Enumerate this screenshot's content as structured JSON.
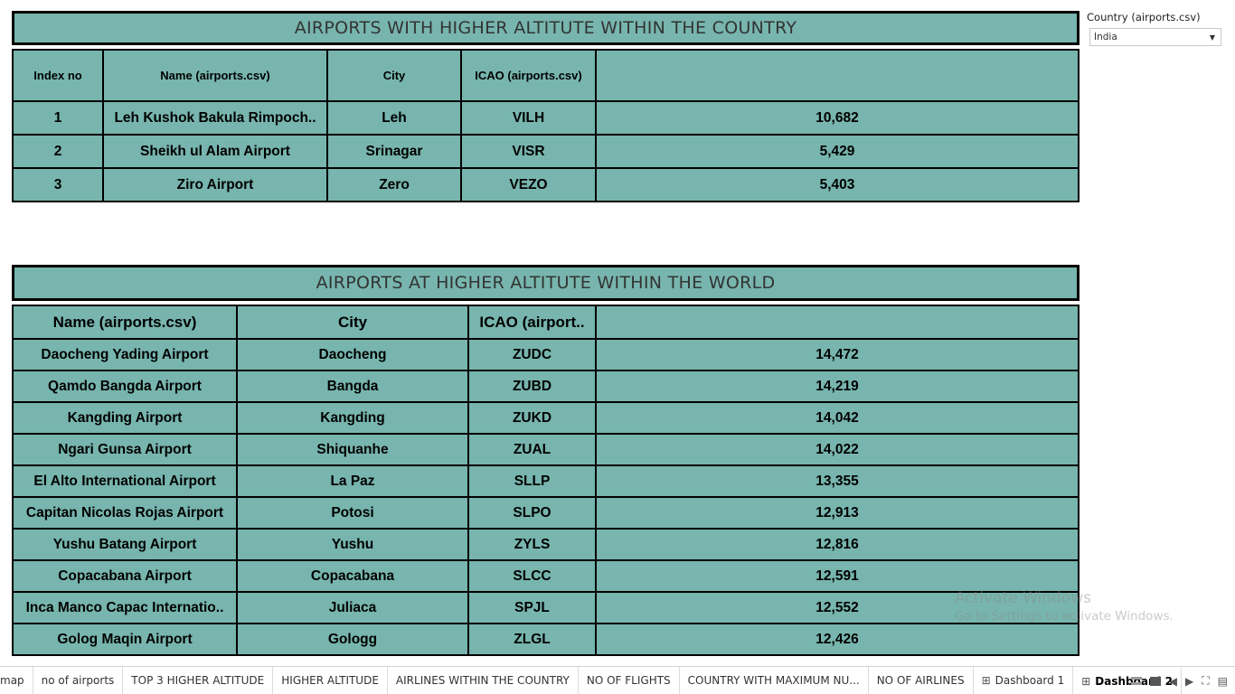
{
  "filter": {
    "label": "Country (airports.csv)",
    "value": "India"
  },
  "country_table": {
    "title": "AIRPORTS WITH HIGHER ALTITUTE WITHIN THE COUNTRY",
    "headers": [
      "Index no",
      "Name (airports.csv)",
      "City",
      "ICAO (airports.csv)",
      ""
    ],
    "rows": [
      [
        "1",
        "Leh Kushok Bakula Rimpoch..",
        "Leh",
        "VILH",
        "10,682"
      ],
      [
        "2",
        "Sheikh ul Alam Airport",
        "Srinagar",
        "VISR",
        "5,429"
      ],
      [
        "3",
        "Ziro Airport",
        "Zero",
        "VEZO",
        "5,403"
      ]
    ]
  },
  "world_table": {
    "title": "AIRPORTS AT HIGHER ALTITUTE WITHIN THE WORLD",
    "headers": [
      "Name (airports.csv)",
      "City",
      "ICAO (airport..",
      ""
    ],
    "rows": [
      [
        "Daocheng Yading Airport",
        "Daocheng",
        "ZUDC",
        "14,472"
      ],
      [
        "Qamdo Bangda Airport",
        "Bangda",
        "ZUBD",
        "14,219"
      ],
      [
        "Kangding Airport",
        "Kangding",
        "ZUKD",
        "14,042"
      ],
      [
        "Ngari Gunsa Airport",
        "Shiquanhe",
        "ZUAL",
        "14,022"
      ],
      [
        "El Alto International Airport",
        "La Paz",
        "SLLP",
        "13,355"
      ],
      [
        "Capitan Nicolas Rojas Airport",
        "Potosi",
        "SLPO",
        "12,913"
      ],
      [
        "Yushu Batang Airport",
        "Yushu",
        "ZYLS",
        "12,816"
      ],
      [
        "Copacabana Airport",
        "Copacabana",
        "SLCC",
        "12,591"
      ],
      [
        "Inca Manco Capac Internatio..",
        "Juliaca",
        "SPJL",
        "12,552"
      ],
      [
        "Golog Maqin Airport",
        "Gologg",
        "ZLGL",
        "12,426"
      ]
    ]
  },
  "watermark": {
    "title": "Activate Windows",
    "subtitle": "Go to Settings to activate Windows."
  },
  "tabs": [
    "map",
    "no of airports",
    "TOP 3 HIGHER ALTITUDE",
    "HIGHER ALTITUDE",
    "AIRLINES WITHIN THE COUNTRY",
    "NO OF FLIGHTS",
    "COUNTRY WITH MAXIMUM NU...",
    "NO OF AIRLINES",
    "Dashboard 1",
    "Dashboard 2"
  ],
  "active_tab": "Dashboard 2",
  "colors": {
    "table_bg": "#77b5ae",
    "border": "#000000"
  }
}
